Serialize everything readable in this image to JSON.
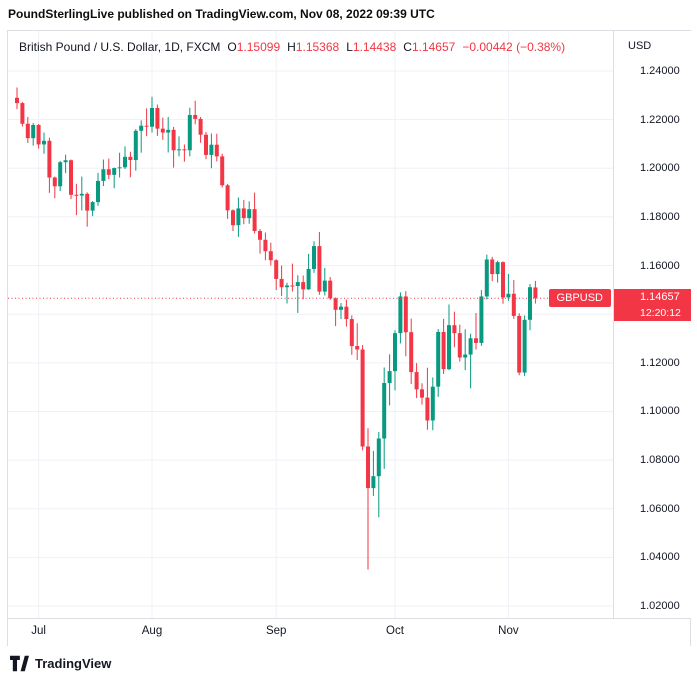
{
  "attribution": {
    "text": "PoundSterlingLive published on TradingView.com, Nov 08, 2022 09:39 UTC"
  },
  "legend": {
    "title": "British Pound / U.S. Dollar, 1D, FXCM",
    "ohlc": [
      {
        "label": "O",
        "value": "1.15099"
      },
      {
        "label": "H",
        "value": "1.15368"
      },
      {
        "label": "L",
        "value": "1.14438"
      },
      {
        "label": "C",
        "value": "1.14657"
      }
    ],
    "change": "−0.00442 (−0.38%)"
  },
  "price_axis": {
    "currency_label": "USD",
    "price_badge": "1.14657",
    "countdown_badge": "12:20:12",
    "symbol_badge": "GBPUSD"
  },
  "footer": {
    "brand": "TradingView"
  },
  "chart_data": {
    "type": "candlestick",
    "title": "British Pound / U.S. Dollar, 1D, FXCM",
    "symbol": "GBPUSD",
    "period": "1D",
    "exchange": "FXCM",
    "currency": "USD",
    "last_price": 1.14657,
    "countdown": "12:20:12",
    "grid": true,
    "up_color": "#089981",
    "down_color": "#f23645",
    "price_line_color": "#f23645",
    "y_ticks": [
      1.02,
      1.04,
      1.06,
      1.08,
      1.1,
      1.12,
      1.14,
      1.16,
      1.18,
      1.2,
      1.22,
      1.24
    ],
    "ylim": [
      1.015,
      1.2565
    ],
    "x_labels": [
      {
        "label": "Jul",
        "index": 4
      },
      {
        "label": "Aug",
        "index": 25
      },
      {
        "label": "Sep",
        "index": 48
      },
      {
        "label": "Oct",
        "index": 70
      },
      {
        "label": "Nov",
        "index": 91
      }
    ],
    "candles": [
      [
        1.229,
        1.2332,
        1.2243,
        1.2268
      ],
      [
        1.2268,
        1.2273,
        1.2172,
        1.2183
      ],
      [
        1.2183,
        1.2211,
        1.2104,
        1.2124
      ],
      [
        1.2124,
        1.2186,
        1.2093,
        1.2178
      ],
      [
        1.2178,
        1.2182,
        1.2081,
        1.2098
      ],
      [
        1.2098,
        1.2147,
        1.206,
        1.2113
      ],
      [
        1.2113,
        1.2126,
        1.1899,
        1.1962
      ],
      [
        1.1962,
        1.1966,
        1.1877,
        1.1926
      ],
      [
        1.1926,
        1.203,
        1.1906,
        1.2025
      ],
      [
        1.2025,
        1.2056,
        1.198,
        1.2033
      ],
      [
        1.2033,
        1.2036,
        1.1873,
        1.1891
      ],
      [
        1.1891,
        1.1936,
        1.1807,
        1.1888
      ],
      [
        1.1888,
        1.1966,
        1.1827,
        1.1895
      ],
      [
        1.1895,
        1.1901,
        1.176,
        1.1826
      ],
      [
        1.1826,
        1.1865,
        1.1803,
        1.1861
      ],
      [
        1.1861,
        1.1981,
        1.1846,
        1.1948
      ],
      [
        1.1948,
        1.2036,
        1.1927,
        1.1996
      ],
      [
        1.1996,
        1.204,
        1.1955,
        1.1973
      ],
      [
        1.1973,
        1.2003,
        1.1918,
        1.2001
      ],
      [
        1.2001,
        1.2064,
        1.1962,
        1.2004
      ],
      [
        1.2004,
        1.209,
        1.1997,
        1.2047
      ],
      [
        1.2047,
        1.2068,
        1.1963,
        1.2034
      ],
      [
        1.2034,
        1.2161,
        1.199,
        1.2154
      ],
      [
        1.2154,
        1.2197,
        1.2064,
        1.2175
      ],
      [
        1.2175,
        1.2246,
        1.2132,
        1.2171
      ],
      [
        1.2171,
        1.2294,
        1.2147,
        1.2248
      ],
      [
        1.2248,
        1.2262,
        1.2133,
        1.2163
      ],
      [
        1.2163,
        1.2208,
        1.2117,
        1.2147
      ],
      [
        1.2147,
        1.2211,
        1.2065,
        1.2158
      ],
      [
        1.2158,
        1.217,
        1.2003,
        1.2074
      ],
      [
        1.2074,
        1.2131,
        1.2049,
        1.2078
      ],
      [
        1.2078,
        1.2098,
        1.2027,
        1.2074
      ],
      [
        1.2074,
        1.2249,
        1.2049,
        1.2219
      ],
      [
        1.2219,
        1.2278,
        1.2181,
        1.2203
      ],
      [
        1.2203,
        1.2211,
        1.2105,
        1.2138
      ],
      [
        1.2138,
        1.2149,
        1.2037,
        1.2055
      ],
      [
        1.2055,
        1.2143,
        1.2,
        1.2097
      ],
      [
        1.2097,
        1.2142,
        1.2028,
        1.2049
      ],
      [
        1.2049,
        1.206,
        1.1921,
        1.193
      ],
      [
        1.193,
        1.1936,
        1.1792,
        1.1827
      ],
      [
        1.1827,
        1.1831,
        1.1742,
        1.1766
      ],
      [
        1.1766,
        1.188,
        1.1718,
        1.1835
      ],
      [
        1.1835,
        1.187,
        1.177,
        1.1795
      ],
      [
        1.1795,
        1.1864,
        1.1772,
        1.1832
      ],
      [
        1.1832,
        1.19,
        1.1732,
        1.1742
      ],
      [
        1.1742,
        1.175,
        1.1649,
        1.1706
      ],
      [
        1.1706,
        1.1736,
        1.1622,
        1.1659
      ],
      [
        1.1659,
        1.1694,
        1.16,
        1.1622
      ],
      [
        1.1622,
        1.1626,
        1.1499,
        1.1545
      ],
      [
        1.1545,
        1.16,
        1.1475,
        1.1511
      ],
      [
        1.1511,
        1.1529,
        1.1444,
        1.1518
      ],
      [
        1.1518,
        1.1608,
        1.1493,
        1.1516
      ],
      [
        1.1516,
        1.156,
        1.1405,
        1.1532
      ],
      [
        1.1532,
        1.1559,
        1.1462,
        1.1502
      ],
      [
        1.1502,
        1.1648,
        1.15,
        1.1586
      ],
      [
        1.1586,
        1.17,
        1.157,
        1.168
      ],
      [
        1.168,
        1.1738,
        1.148,
        1.1493
      ],
      [
        1.1493,
        1.159,
        1.1477,
        1.1538
      ],
      [
        1.1538,
        1.1553,
        1.1459,
        1.1465
      ],
      [
        1.1465,
        1.1469,
        1.1351,
        1.1418
      ],
      [
        1.1418,
        1.1446,
        1.138,
        1.1431
      ],
      [
        1.1431,
        1.146,
        1.1349,
        1.138
      ],
      [
        1.138,
        1.1395,
        1.1233,
        1.1269
      ],
      [
        1.1269,
        1.1363,
        1.1212,
        1.1255
      ],
      [
        1.1255,
        1.1273,
        1.084,
        1.0856
      ],
      [
        1.0856,
        1.0931,
        1.035,
        1.0685
      ],
      [
        1.0685,
        1.0838,
        1.0653,
        1.0734
      ],
      [
        1.0734,
        1.0916,
        1.0565,
        1.0889
      ],
      [
        1.0889,
        1.1181,
        1.0764,
        1.1117
      ],
      [
        1.1117,
        1.1235,
        1.1025,
        1.1166
      ],
      [
        1.1166,
        1.1334,
        1.1087,
        1.1322
      ],
      [
        1.1322,
        1.149,
        1.128,
        1.1473
      ],
      [
        1.1473,
        1.1495,
        1.1227,
        1.1326
      ],
      [
        1.1326,
        1.1382,
        1.1113,
        1.1162
      ],
      [
        1.1162,
        1.1199,
        1.1055,
        1.1091
      ],
      [
        1.1091,
        1.1116,
        1.1028,
        1.1057
      ],
      [
        1.1057,
        1.118,
        1.0925,
        1.0963
      ],
      [
        1.0963,
        1.114,
        1.0923,
        1.1102
      ],
      [
        1.1102,
        1.1339,
        1.106,
        1.1327
      ],
      [
        1.1327,
        1.1381,
        1.1154,
        1.1174
      ],
      [
        1.1174,
        1.144,
        1.117,
        1.1355
      ],
      [
        1.1355,
        1.141,
        1.1264,
        1.1322
      ],
      [
        1.1322,
        1.1357,
        1.1205,
        1.1222
      ],
      [
        1.1222,
        1.1338,
        1.117,
        1.1234
      ],
      [
        1.1234,
        1.132,
        1.1095,
        1.1301
      ],
      [
        1.1301,
        1.1405,
        1.1255,
        1.1282
      ],
      [
        1.1282,
        1.1499,
        1.127,
        1.1473
      ],
      [
        1.1473,
        1.1645,
        1.1461,
        1.1625
      ],
      [
        1.1625,
        1.1636,
        1.1536,
        1.1565
      ],
      [
        1.1565,
        1.162,
        1.153,
        1.1614
      ],
      [
        1.1614,
        1.1617,
        1.1443,
        1.1469
      ],
      [
        1.1469,
        1.1565,
        1.1455,
        1.1484
      ],
      [
        1.1484,
        1.1541,
        1.1381,
        1.1393
      ],
      [
        1.1393,
        1.1404,
        1.1149,
        1.116
      ],
      [
        1.116,
        1.1395,
        1.1146,
        1.1377
      ],
      [
        1.1377,
        1.1524,
        1.1334,
        1.1511
      ],
      [
        1.15099,
        1.15368,
        1.14438,
        1.14657
      ]
    ]
  }
}
